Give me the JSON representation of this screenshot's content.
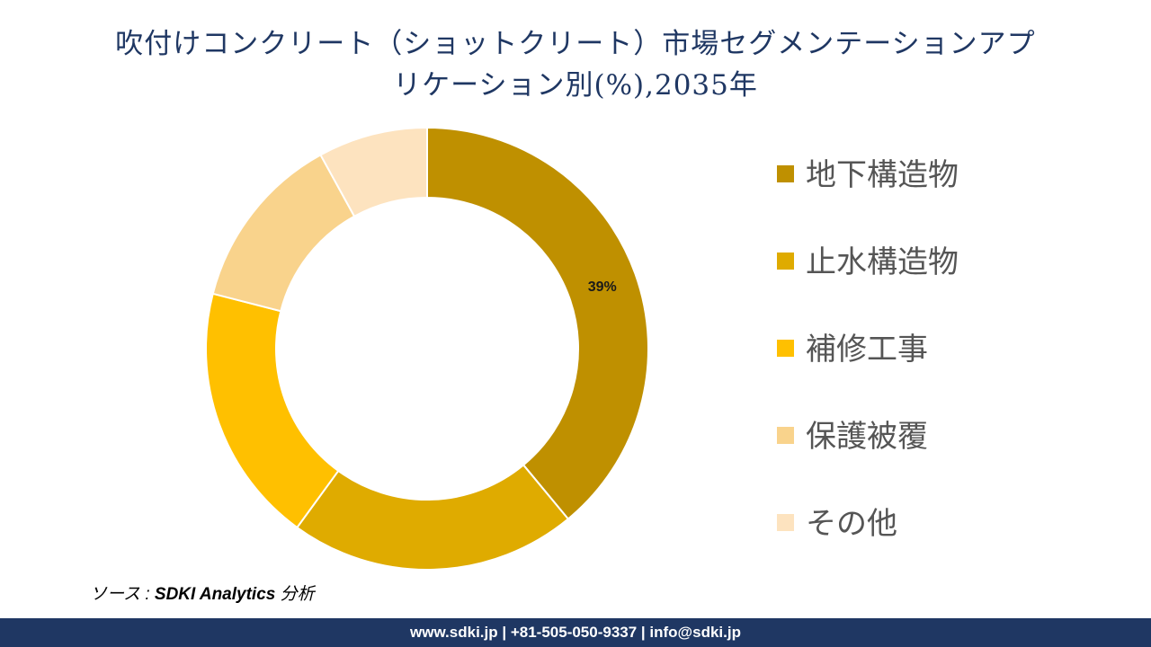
{
  "title": {
    "line1": "吹付けコンクリート（ショットクリート）市場セグメンテーションアプ",
    "line2": "リケーション別(%),2035年"
  },
  "chart_data": {
    "type": "pie",
    "subtype": "donut",
    "title": "吹付けコンクリート（ショットクリート）市場セグメンテーションアプリケーション別(%),2035年",
    "unit": "%",
    "categories": [
      "地下構造物",
      "止水構造物",
      "補修工事",
      "保護被覆",
      "その他"
    ],
    "values": [
      39,
      21,
      19,
      13,
      8
    ],
    "colors": [
      "#bf9000",
      "#dfab00",
      "#ffc000",
      "#f9d38c",
      "#fde3bf"
    ],
    "data_labels": [
      {
        "category": "地下構造物",
        "text": "39%"
      }
    ],
    "legend_position": "right"
  },
  "source": {
    "prefix": "ソース : ",
    "name": "SDKI Analytics",
    "suffix": " 分析"
  },
  "footer": {
    "text": "www.sdki.jp | +81-505-050-9337 | info@sdki.jp"
  }
}
